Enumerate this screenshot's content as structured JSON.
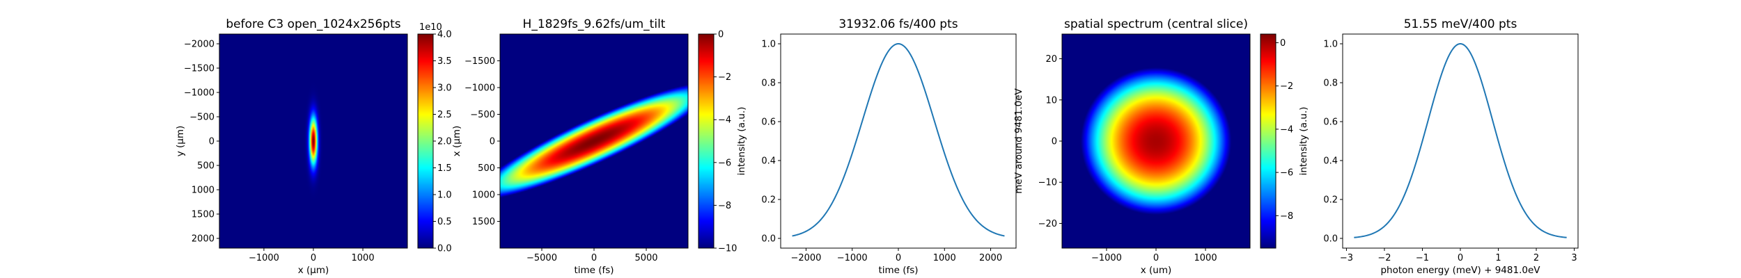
{
  "chart_data": [
    {
      "type": "heatmap",
      "title": "before C3 open_1024x256pts",
      "xlabel": "x (μm)",
      "ylabel": "y (μm)",
      "xlim": [
        -1900,
        1900
      ],
      "ylim": [
        -2200,
        2200
      ],
      "y_inverted": true,
      "xticks": [
        -1000,
        0,
        1000
      ],
      "yticks": [
        -2000,
        -1500,
        -1000,
        -500,
        0,
        500,
        1000,
        1500,
        2000
      ],
      "colormap": "jet",
      "colorbar": {
        "range": [
          0,
          4.0
        ],
        "ticks": [
          "0.0",
          "0.5",
          "1.0",
          "1.5",
          "2.0",
          "2.5",
          "3.0",
          "3.5",
          "4.0"
        ],
        "ticks_values": [
          0,
          0.5,
          1,
          1.5,
          2,
          2.5,
          3,
          3.5,
          4
        ],
        "offset_label": "1e10"
      },
      "blob": {
        "center_x": 0,
        "center_y": 0,
        "sigma_x": 55,
        "sigma_y": 330,
        "tilt_fs_per_um": 0,
        "peak": 4.0
      }
    },
    {
      "type": "heatmap",
      "title": "H_1829fs_9.62fs/um_tilt",
      "xlabel": "time (fs)",
      "ylabel": "x (μm)",
      "xlim": [
        -9000,
        9000
      ],
      "ylim": [
        -2000,
        2000
      ],
      "y_inverted": true,
      "xticks": [
        -5000,
        0,
        5000
      ],
      "yticks": [
        -1500,
        -1000,
        -500,
        0,
        500,
        1000,
        1500
      ],
      "colormap": "jet",
      "colorbar": {
        "range": [
          -10,
          0
        ],
        "ticks": [
          "0",
          "−2",
          "−4",
          "−6",
          "−8",
          "−10"
        ],
        "ticks_values": [
          0,
          -2,
          -4,
          -6,
          -8,
          -10
        ]
      },
      "blob": {
        "center_x": 0,
        "center_y": 0,
        "sigma_x": 700,
        "sigma_y": 160,
        "tilt_fs_per_um": -9.62,
        "peak": 0
      }
    },
    {
      "type": "line",
      "title": "31932.06 fs/400 pts",
      "xlabel": "time (fs)",
      "ylabel": "intensity (a.u.)",
      "xlim": [
        -2550,
        2550
      ],
      "ylim": [
        -0.05,
        1.05
      ],
      "xticks": [
        -2000,
        -1000,
        0,
        1000,
        2000
      ],
      "yticks": [
        0.0,
        0.2,
        0.4,
        0.6,
        0.8,
        1.0
      ],
      "series": [
        {
          "gaussian": {
            "center": 0,
            "fwhm": 1829,
            "amplitude": 1.0
          },
          "x_range": [
            -2300,
            2300
          ],
          "points": 200
        }
      ]
    },
    {
      "type": "heatmap",
      "title": "spatial spectrum (central slice)",
      "xlabel": "x (um)",
      "ylabel": "meV around 9481.0eV",
      "xlim": [
        -1900,
        1900
      ],
      "ylim": [
        -26,
        26
      ],
      "y_inverted": false,
      "xticks": [
        -1000,
        0,
        1000
      ],
      "yticks": [
        -20,
        -10,
        0,
        10,
        20
      ],
      "colormap": "jet",
      "colorbar": {
        "range": [
          -9.5,
          0.4
        ],
        "ticks": [
          "0",
          "−2",
          "−4",
          "−6",
          "−8"
        ],
        "ticks_values": [
          0,
          -2,
          -4,
          -6,
          -8
        ]
      },
      "blob": {
        "center_x": 0,
        "center_y": 0,
        "sigma_x": 230,
        "sigma_y": 2.7,
        "tilt_fs_per_um": 0,
        "peak": 0
      }
    },
    {
      "type": "line",
      "title": "51.55 meV/400 pts",
      "xlabel": "photon energy (meV) + 9481.0eV",
      "ylabel": "intensity (a.u.)",
      "xlim": [
        -3.1,
        3.1
      ],
      "ylim": [
        -0.05,
        1.05
      ],
      "xticks": [
        -3,
        -2,
        -1,
        0,
        1,
        2,
        3
      ],
      "yticks": [
        0.0,
        0.2,
        0.4,
        0.6,
        0.8,
        1.0
      ],
      "series": [
        {
          "gaussian": {
            "center": 0,
            "fwhm": 2.0,
            "amplitude": 1.0
          },
          "x_range": [
            -2.8,
            2.8
          ],
          "points": 200
        }
      ]
    }
  ]
}
